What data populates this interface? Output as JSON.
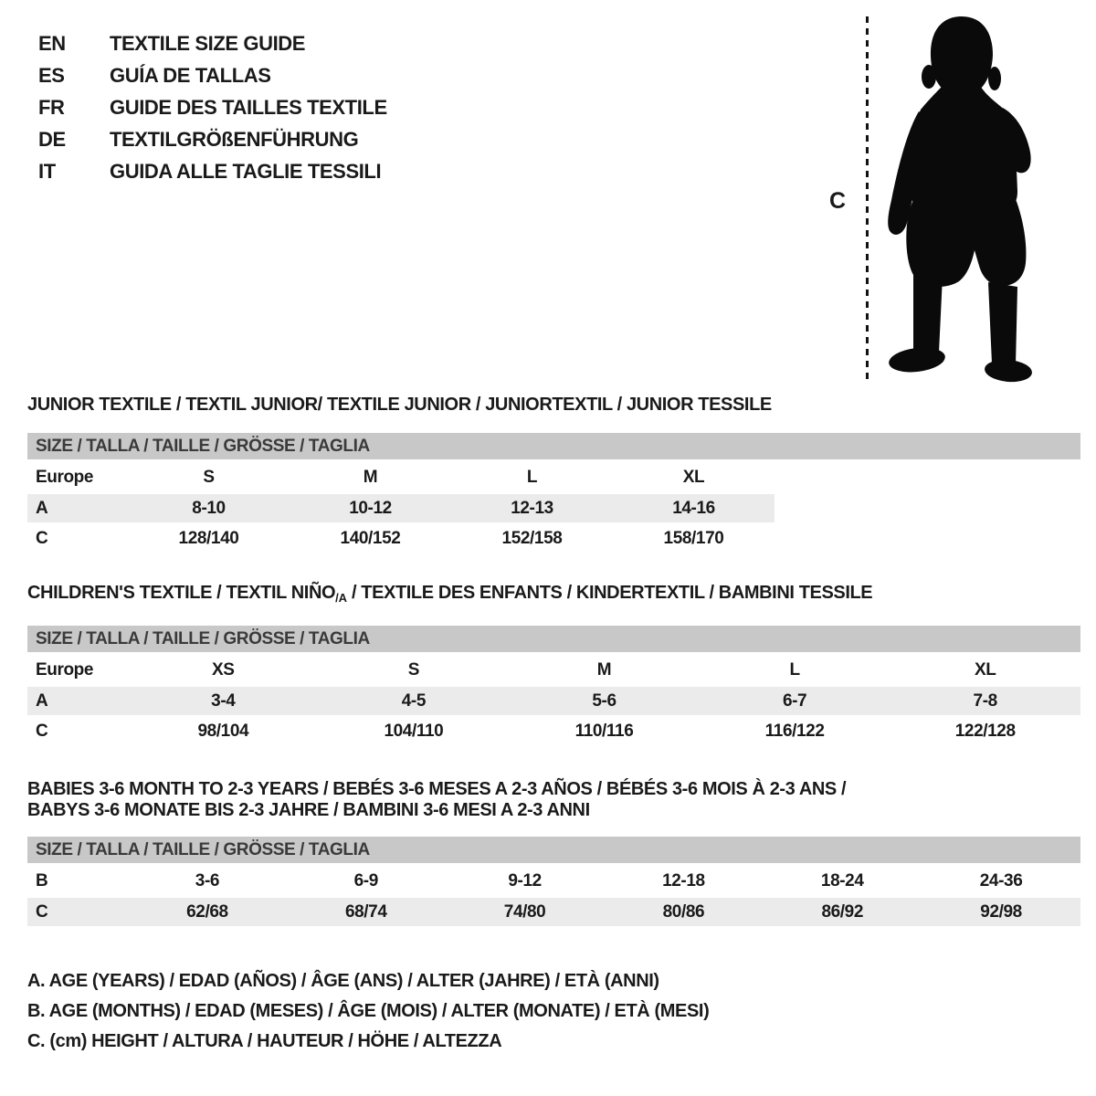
{
  "colors": {
    "background": "#ffffff",
    "header_bar": "#c8c8c8",
    "row_stripe": "#ebebeb",
    "text": "#1a1a1a",
    "silhouette": "#0a0a0a"
  },
  "languages": [
    {
      "code": "EN",
      "title": "TEXTILE SIZE GUIDE"
    },
    {
      "code": "ES",
      "title": "GUÍA DE TALLAS"
    },
    {
      "code": "FR",
      "title": "GUIDE DES TAILLES TEXTILE"
    },
    {
      "code": "DE",
      "title": "TEXTILGRÖßENFÜHRUNG"
    },
    {
      "code": "IT",
      "title": "GUIDA ALLE TAGLIE TESSILI"
    }
  ],
  "figure": {
    "height_label": "C"
  },
  "sections": [
    {
      "title": "JUNIOR TEXTILE / TEXTIL JUNIOR/ TEXTILE JUNIOR / JUNIORTEXTIL / JUNIOR TESSILE",
      "size_header": "SIZE / TALLA / TAILLE / GRÖSSE / TAGLIA",
      "rows": [
        {
          "label": "Europe",
          "cells": [
            "S",
            "M",
            "L",
            "XL"
          ]
        },
        {
          "label": "A",
          "cells": [
            "8-10",
            "10-12",
            "12-13",
            "14-16"
          ]
        },
        {
          "label": "C",
          "cells": [
            "128/140",
            "140/152",
            "152/158",
            "158/170"
          ]
        }
      ]
    },
    {
      "title_pre": "CHILDREN'S TEXTILE / TEXTIL NIÑO",
      "title_sub": "/A",
      "title_post": " / TEXTILE DES ENFANTS / KINDERTEXTIL / BAMBINI TESSILE",
      "size_header": "SIZE / TALLA / TAILLE / GRÖSSE / TAGLIA",
      "rows": [
        {
          "label": "Europe",
          "cells": [
            "XS",
            "S",
            "M",
            "L",
            "XL"
          ]
        },
        {
          "label": "A",
          "cells": [
            "3-4",
            "4-5",
            "5-6",
            "6-7",
            "7-8"
          ]
        },
        {
          "label": "C",
          "cells": [
            "98/104",
            "104/110",
            "110/116",
            "116/122",
            "122/128"
          ]
        }
      ]
    },
    {
      "title_line1": "BABIES 3-6 MONTH TO 2-3 YEARS / BEBÉS 3-6 MESES A 2-3 AÑOS / BÉBÉS 3-6 MOIS À 2-3 ANS /",
      "title_line2": "BABYS 3-6 MONATE BIS 2-3 JAHRE / BAMBINI 3-6 MESI A 2-3 ANNI",
      "size_header": "SIZE / TALLA / TAILLE / GRÖSSE / TAGLIA",
      "rows": [
        {
          "label": "B",
          "cells": [
            "3-6",
            "6-9",
            "9-12",
            "12-18",
            "18-24",
            "24-36"
          ]
        },
        {
          "label": "C",
          "cells": [
            "62/68",
            "68/74",
            "74/80",
            "80/86",
            "86/92",
            "92/98"
          ]
        }
      ]
    }
  ],
  "legend": [
    "A. AGE (YEARS) / EDAD (AÑOS) / ÂGE (ANS) / ALTER (JAHRE) / ETÀ (ANNI)",
    "B. AGE (MONTHS) / EDAD (MESES) / ÂGE (MOIS) / ALTER (MONATE) / ETÀ (MESI)",
    "C. (cm) HEIGHT / ALTURA / HAUTEUR / HÖHE / ALTEZZA"
  ]
}
